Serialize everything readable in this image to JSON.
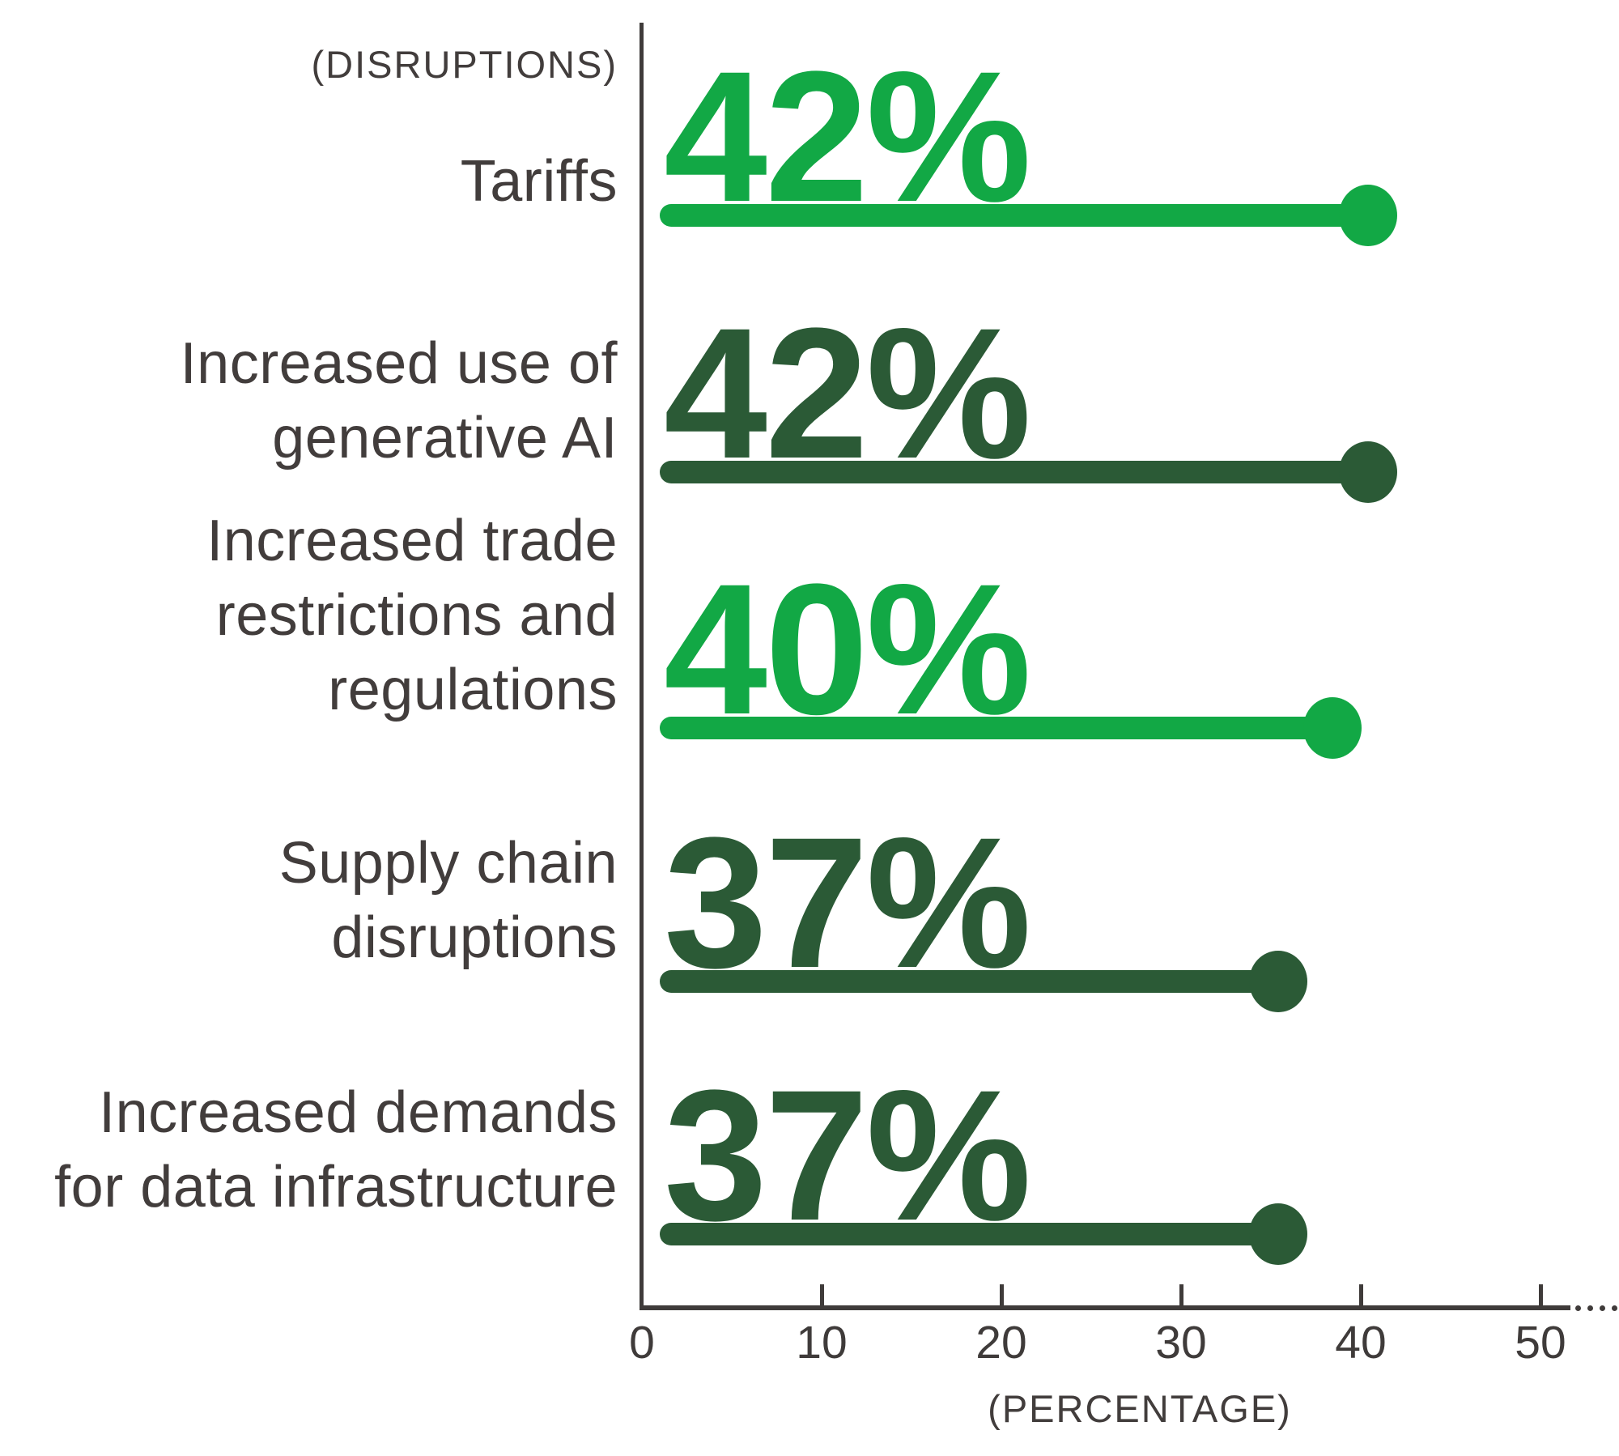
{
  "page": {
    "background": "#FFFFFF"
  },
  "colors": {
    "light_green": "#12A845",
    "dark_green": "#2B5A36",
    "axis_line": "#3F3B3A",
    "text": "#423D3C"
  },
  "chart_data": {
    "type": "bar",
    "variant": "horizontal-lollipop",
    "title": "",
    "y_axis_title": "(DISRUPTIONS)",
    "x_axis_title": "(PERCENTAGE)",
    "xlim": [
      0,
      52
    ],
    "grid": false,
    "legend": false,
    "x_ticks": [
      {
        "value": 0,
        "label": "0"
      },
      {
        "value": 10,
        "label": "10"
      },
      {
        "value": 20,
        "label": "20"
      },
      {
        "value": 30,
        "label": "30"
      },
      {
        "value": 40,
        "label": "40"
      },
      {
        "value": 50,
        "label": "50"
      }
    ],
    "categories": [
      "Tariffs",
      "Increased use of generative AI",
      "Increased trade restrictions and regulations",
      "Supply chain disruptions",
      "Increased demands for data infrastructure"
    ],
    "values": [
      42,
      42,
      40,
      37,
      37
    ],
    "points": [
      {
        "category": "Tariffs",
        "label_lines": [
          "Tariffs"
        ],
        "value": 42,
        "value_label": "42%",
        "color": "#12A845",
        "color_name": "light_green"
      },
      {
        "category": "Increased use of generative AI",
        "label_lines": [
          "Increased use of",
          "generative AI"
        ],
        "value": 42,
        "value_label": "42%",
        "color": "#2B5A36",
        "color_name": "dark_green"
      },
      {
        "category": "Increased trade restrictions and regulations",
        "label_lines": [
          "Increased trade",
          "restrictions and",
          "regulations"
        ],
        "value": 40,
        "value_label": "40%",
        "color": "#12A845",
        "color_name": "light_green"
      },
      {
        "category": "Supply chain disruptions",
        "label_lines": [
          "Supply chain",
          "disruptions"
        ],
        "value": 37,
        "value_label": "37%",
        "color": "#2B5A36",
        "color_name": "dark_green"
      },
      {
        "category": "Increased demands for data infrastructure",
        "label_lines": [
          "Increased demands",
          "for data infrastructure"
        ],
        "value": 37,
        "value_label": "37%",
        "color": "#2B5A36",
        "color_name": "dark_green"
      }
    ]
  }
}
